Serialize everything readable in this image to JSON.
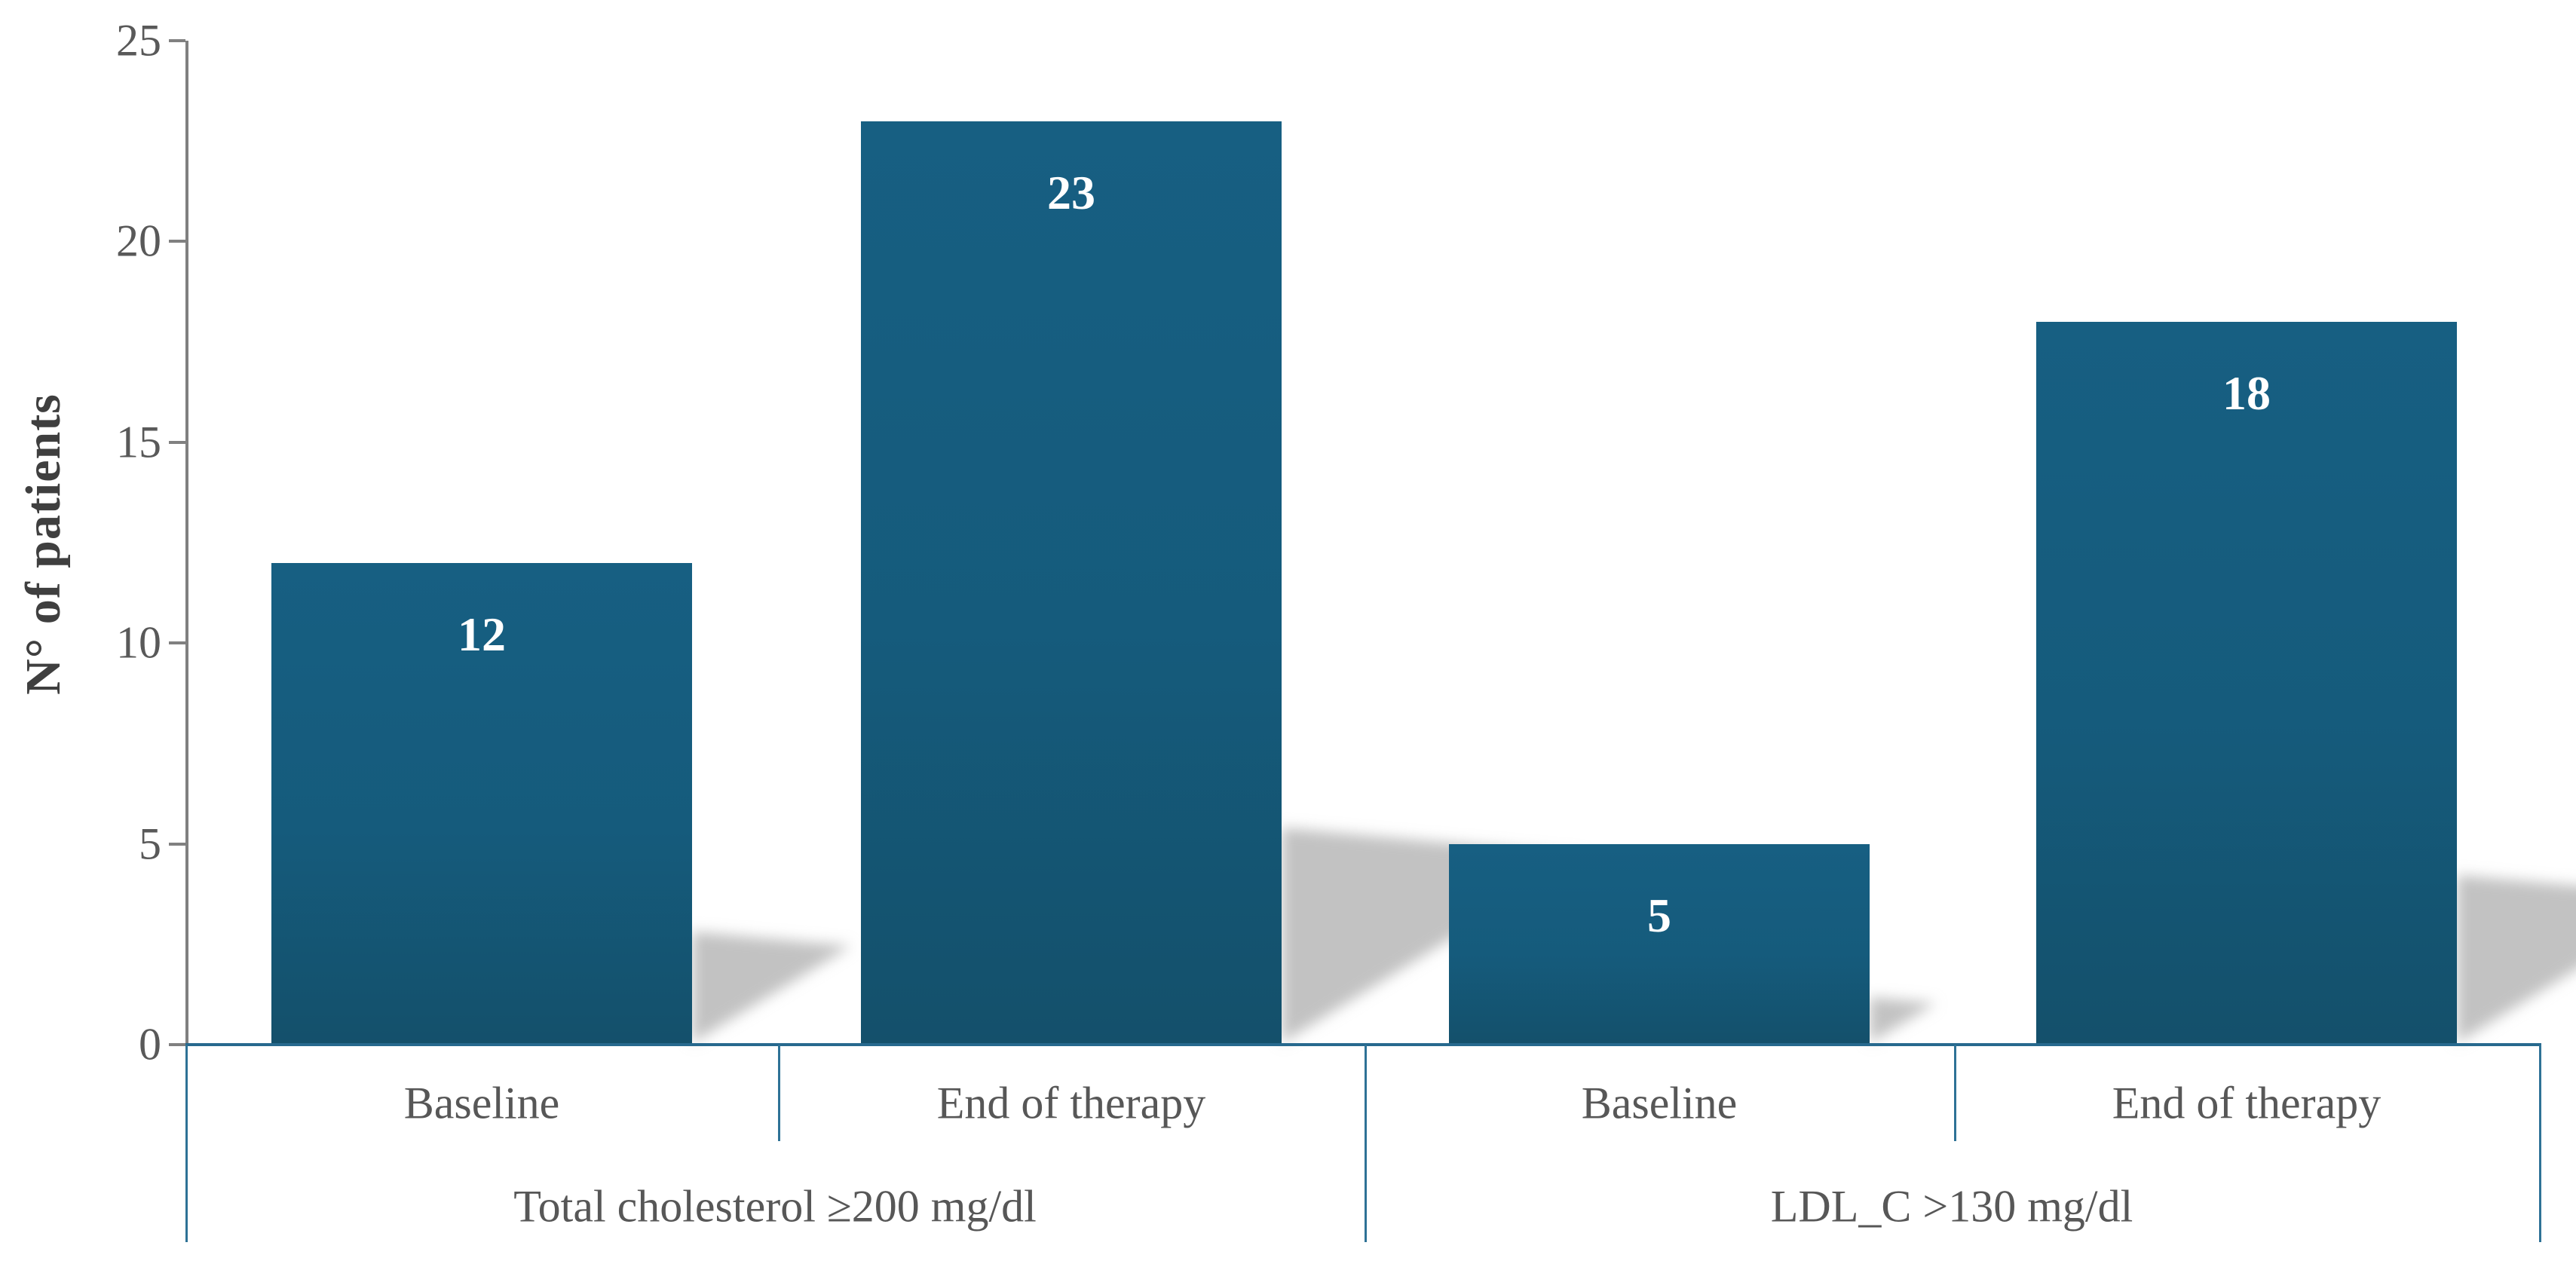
{
  "figure": {
    "background": "#ffffff"
  },
  "chart_data": {
    "type": "bar",
    "title": "",
    "xlabel": "",
    "ylabel": "N° of patients",
    "ylim": [
      0,
      25
    ],
    "yticks": [
      0,
      5,
      10,
      15,
      20,
      25
    ],
    "grid": false,
    "legend": false,
    "groups": [
      {
        "label": "Total cholesterol ≥200 mg/dl",
        "bars": [
          {
            "category": "Baseline",
            "value": 12
          },
          {
            "category": "End of therapy",
            "value": 23
          }
        ]
      },
      {
        "label": "LDL_C >130 mg/dl",
        "bars": [
          {
            "category": "Baseline",
            "value": 5
          },
          {
            "category": "End of therapy",
            "value": 18
          }
        ]
      }
    ],
    "style": {
      "bar_fill_top": "#175F82",
      "bar_fill_bottom": "#14506B",
      "value_label_color": "#FFFFFF",
      "axis_line_color": "#808080",
      "table_line_color": "#27698E",
      "text_color": "#575757",
      "shadow_color": "#B3B3B3"
    }
  }
}
